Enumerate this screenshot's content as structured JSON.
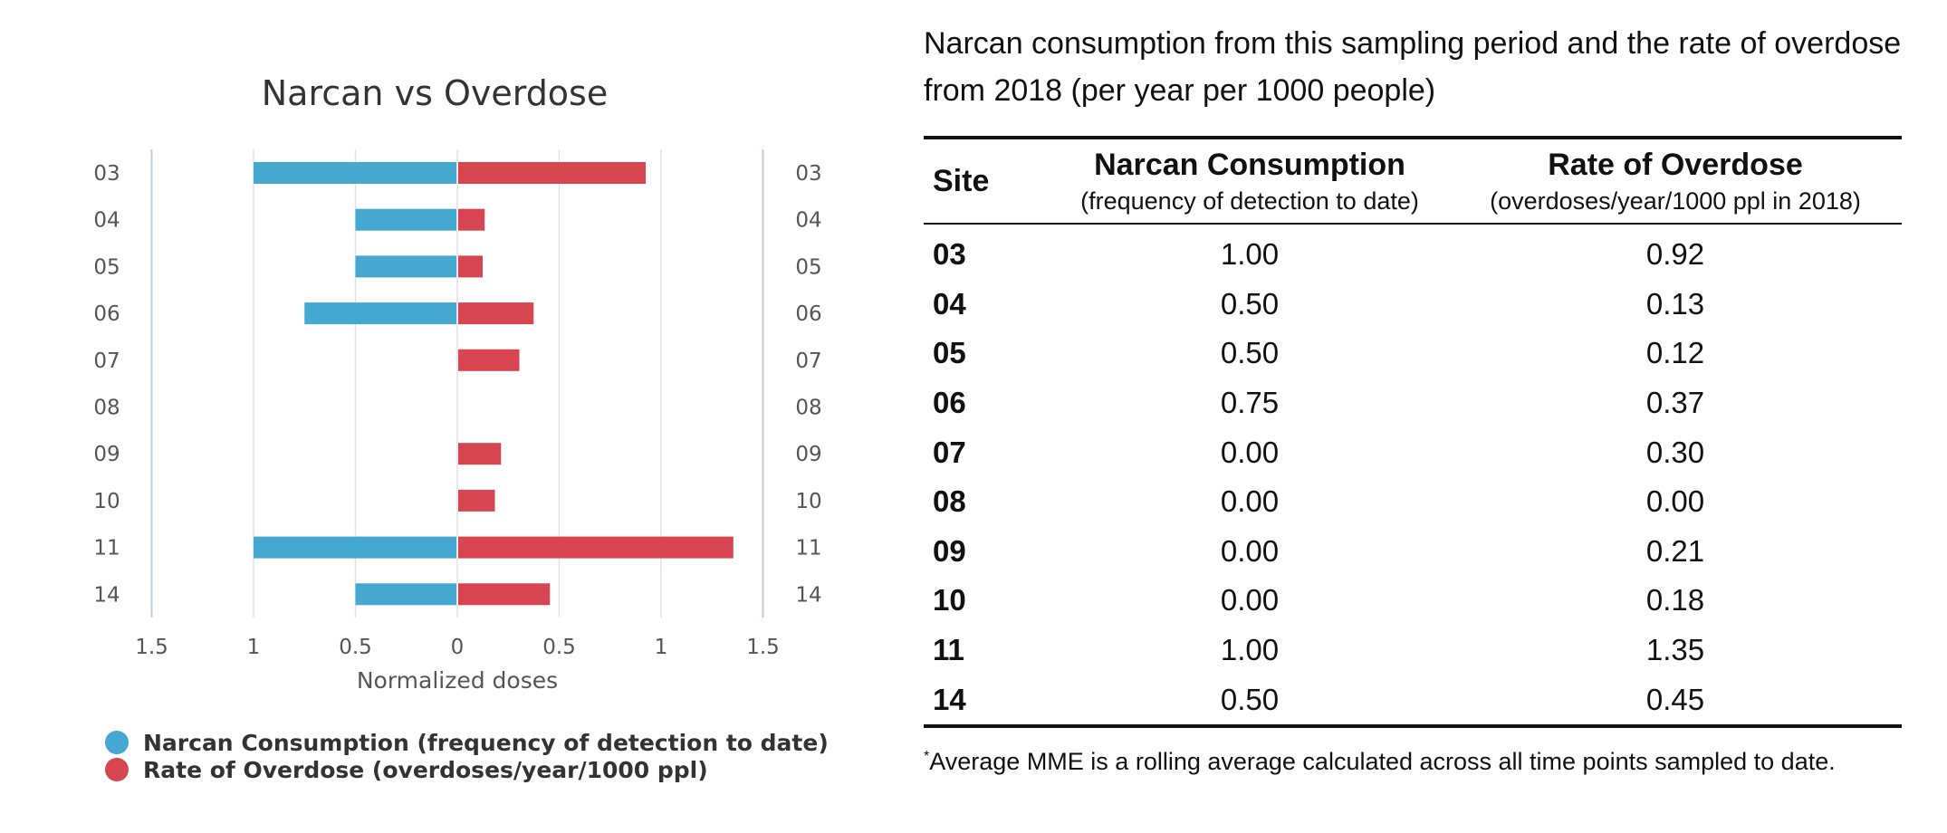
{
  "chart_data": {
    "type": "bar",
    "orientation": "horizontal-diverging",
    "title": "Narcan vs Overdose",
    "xlabel": "Normalized doses",
    "categories": [
      "03",
      "04",
      "05",
      "06",
      "07",
      "08",
      "09",
      "10",
      "11",
      "14"
    ],
    "series": [
      {
        "name": "Narcan Consumption (frequency of detection to date)",
        "color": "#45a8d0",
        "values": [
          1.0,
          0.5,
          0.5,
          0.75,
          0.0,
          0.0,
          0.0,
          0.0,
          1.0,
          0.5
        ],
        "direction": "left"
      },
      {
        "name": "Rate of Overdose (overdoses/year/1000 ppl)",
        "color": "#d64550",
        "values": [
          0.92,
          0.13,
          0.12,
          0.37,
          0.3,
          0.0,
          0.21,
          0.18,
          1.35,
          0.45
        ],
        "direction": "right"
      }
    ],
    "xticks": [
      "1.5",
      "1",
      "0.5",
      "0",
      "0.5",
      "1",
      "1.5"
    ],
    "xlim": [
      -1.5,
      1.5
    ],
    "grid": true,
    "legend_position": "bottom-left"
  },
  "table": {
    "caption": "Narcan consumption from this sampling period and the rate of overdose from 2018 (per year per 1000 people)",
    "headers": {
      "site": "Site",
      "narcan_main": "Narcan Consumption",
      "narcan_sub": "(frequency of detection to date)",
      "overdose_main": "Rate of Overdose",
      "overdose_sub": "(overdoses/year/1000 ppl in 2018)"
    },
    "rows": [
      {
        "site": "03",
        "narcan": "1.00",
        "overdose": "0.92"
      },
      {
        "site": "04",
        "narcan": "0.50",
        "overdose": "0.13"
      },
      {
        "site": "05",
        "narcan": "0.50",
        "overdose": "0.12"
      },
      {
        "site": "06",
        "narcan": "0.75",
        "overdose": "0.37"
      },
      {
        "site": "07",
        "narcan": "0.00",
        "overdose": "0.30"
      },
      {
        "site": "08",
        "narcan": "0.00",
        "overdose": "0.00"
      },
      {
        "site": "09",
        "narcan": "0.00",
        "overdose": "0.21"
      },
      {
        "site": "10",
        "narcan": "0.00",
        "overdose": "0.18"
      },
      {
        "site": "11",
        "narcan": "1.00",
        "overdose": "1.35"
      },
      {
        "site": "14",
        "narcan": "0.50",
        "overdose": "0.45"
      }
    ],
    "footnote_mark": "*",
    "footnote": "Average MME is a rolling average calculated across all time points sampled to date."
  }
}
